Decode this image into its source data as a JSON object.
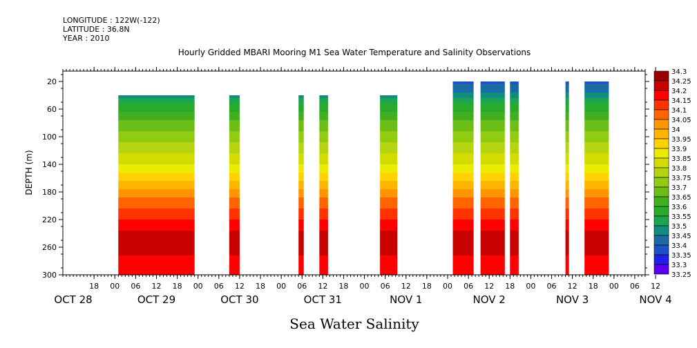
{
  "header": {
    "longitude": "LONGITUDE : 122W(-122)",
    "latitude": "LATITUDE : 36.8N",
    "year": "YEAR : 2010"
  },
  "chart_data": {
    "type": "heatmap",
    "title": "Hourly Gridded MBARI Mooring M1 Sea Water Temperature and Salinity Observations",
    "xlabel": "Sea Water Salinity",
    "ylabel": "DEPTH (m)",
    "x_unit": "hours since 2010-10-28 00:00",
    "xlim": [
      9,
      177
    ],
    "ylim": [
      300,
      5
    ],
    "y_ticks": [
      20,
      60,
      100,
      140,
      180,
      220,
      260,
      300
    ],
    "hour_ticks": [
      {
        "x": 18,
        "label": "18"
      },
      {
        "x": 24,
        "label": "00"
      },
      {
        "x": 30,
        "label": "06"
      },
      {
        "x": 36,
        "label": "12"
      },
      {
        "x": 42,
        "label": "18"
      },
      {
        "x": 48,
        "label": "00"
      },
      {
        "x": 54,
        "label": "06"
      },
      {
        "x": 60,
        "label": "12"
      },
      {
        "x": 66,
        "label": "18"
      },
      {
        "x": 72,
        "label": "00"
      },
      {
        "x": 78,
        "label": "06"
      },
      {
        "x": 84,
        "label": "12"
      },
      {
        "x": 90,
        "label": "18"
      },
      {
        "x": 96,
        "label": "00"
      },
      {
        "x": 102,
        "label": "06"
      },
      {
        "x": 108,
        "label": "12"
      },
      {
        "x": 114,
        "label": "18"
      },
      {
        "x": 120,
        "label": "00"
      },
      {
        "x": 126,
        "label": "06"
      },
      {
        "x": 132,
        "label": "12"
      },
      {
        "x": 138,
        "label": "18"
      },
      {
        "x": 144,
        "label": "00"
      },
      {
        "x": 150,
        "label": "06"
      },
      {
        "x": 156,
        "label": "12"
      },
      {
        "x": 162,
        "label": "18"
      },
      {
        "x": 168,
        "label": "00"
      },
      {
        "x": 174,
        "label": "06"
      },
      {
        "x": 180,
        "label": "12"
      }
    ],
    "date_labels": [
      {
        "x": 12,
        "label": "OCT 28"
      },
      {
        "x": 36,
        "label": "OCT 29"
      },
      {
        "x": 60,
        "label": "OCT 30"
      },
      {
        "x": 84,
        "label": "OCT 31"
      },
      {
        "x": 108,
        "label": "NOV  1"
      },
      {
        "x": 132,
        "label": "NOV  2"
      },
      {
        "x": 156,
        "label": "NOV  3"
      },
      {
        "x": 180,
        "label": "NOV  4"
      }
    ],
    "levels": [
      33.25,
      33.3,
      33.35,
      33.4,
      33.45,
      33.5,
      33.55,
      33.6,
      33.65,
      33.7,
      33.75,
      33.8,
      33.85,
      33.9,
      33.95,
      34,
      34.05,
      34.1,
      34.15,
      34.2,
      34.25,
      34.3
    ],
    "level_labels": [
      "34.3",
      "34.25",
      "34.2",
      "34.15",
      "34.1",
      "34.05",
      "34",
      "33.95",
      "33.9",
      "33.85",
      "33.8",
      "33.75",
      "33.7",
      "33.65",
      "33.6",
      "33.55",
      "33.5",
      "33.45",
      "33.4",
      "33.35",
      "33.3",
      "33.25"
    ],
    "colors": [
      "#c600c6",
      "#8a00e6",
      "#5a00f0",
      "#2020e6",
      "#2050c8",
      "#1a6aa4",
      "#108c80",
      "#1ca450",
      "#2aaa2a",
      "#40b020",
      "#6cbe16",
      "#92cc12",
      "#b4d410",
      "#d2dc00",
      "#ecec00",
      "#ffd200",
      "#ffb400",
      "#ff9600",
      "#ff6400",
      "#ff3200",
      "#ff0000",
      "#c80000",
      "#960000"
    ],
    "segments": [
      {
        "x0": 25,
        "x1": 47,
        "top": 40
      },
      {
        "x0": 57,
        "x1": 60,
        "top": 40
      },
      {
        "x0": 77,
        "x1": 78.5,
        "top": 40
      },
      {
        "x0": 83,
        "x1": 85.5,
        "top": 40
      },
      {
        "x0": 100.5,
        "x1": 105.5,
        "top": 40
      },
      {
        "x0": 121.5,
        "x1": 127.5,
        "top": 20
      },
      {
        "x0": 129.5,
        "x1": 136.5,
        "top": 20
      },
      {
        "x0": 138,
        "x1": 140.5,
        "top": 20
      },
      {
        "x0": 154,
        "x1": 155,
        "top": 20
      },
      {
        "x0": 159.5,
        "x1": 166.5,
        "top": 20
      }
    ],
    "profile": [
      {
        "depth": 20,
        "value": 33.42
      },
      {
        "depth": 40,
        "value": 33.53
      },
      {
        "depth": 60,
        "value": 33.63
      },
      {
        "depth": 80,
        "value": 33.71
      },
      {
        "depth": 100,
        "value": 33.77
      },
      {
        "depth": 120,
        "value": 33.83
      },
      {
        "depth": 140,
        "value": 33.9
      },
      {
        "depth": 160,
        "value": 33.98
      },
      {
        "depth": 180,
        "value": 34.06
      },
      {
        "depth": 200,
        "value": 34.14
      },
      {
        "depth": 220,
        "value": 34.2
      },
      {
        "depth": 240,
        "value": 34.26
      },
      {
        "depth": 260,
        "value": 34.28
      },
      {
        "depth": 280,
        "value": 34.22
      },
      {
        "depth": 300,
        "value": 34.2
      }
    ]
  }
}
